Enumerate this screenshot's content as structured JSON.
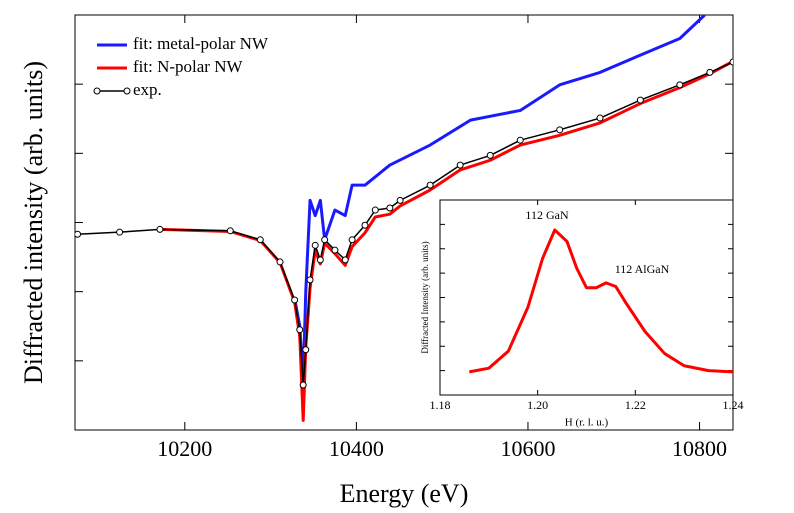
{
  "chart_data": [
    {
      "type": "line",
      "xlabel": "Energy (eV)",
      "ylabel": "Diffracted intensity (arb. units)",
      "xlim": [
        10072,
        10839
      ],
      "xticks": [
        10200,
        10400,
        10600,
        10800
      ],
      "ylim": [
        0,
        6
      ],
      "yticks": [
        1,
        2,
        3,
        4,
        5
      ],
      "legend": "upper left",
      "series": [
        {
          "name": "fit: metal-polar NW",
          "color": "#1a1aff",
          "x": [
            10328,
            10334,
            10338,
            10341,
            10346,
            10352,
            10358,
            10363,
            10375,
            10387,
            10395,
            10410,
            10439,
            10486,
            10533,
            10591,
            10637,
            10684,
            10731,
            10777,
            10806
          ],
          "values": [
            1.9,
            1.5,
            0.72,
            2.0,
            3.32,
            3.1,
            3.32,
            2.75,
            3.18,
            3.1,
            3.54,
            3.54,
            3.83,
            4.12,
            4.48,
            4.62,
            4.99,
            5.17,
            5.42,
            5.66,
            6.0
          ]
        },
        {
          "name": "fit: N-polar NW",
          "color": "#ff0000",
          "x": [
            10171,
            10253,
            10288,
            10311,
            10328,
            10334,
            10338,
            10341,
            10346,
            10352,
            10358,
            10363,
            10375,
            10387,
            10395,
            10410,
            10422,
            10439,
            10451,
            10486,
            10521,
            10556,
            10591,
            10637,
            10684,
            10731,
            10777,
            10812,
            10839
          ],
          "values": [
            2.9,
            2.87,
            2.74,
            2.42,
            1.85,
            1.35,
            0.14,
            1.2,
            2.05,
            2.6,
            2.4,
            2.7,
            2.55,
            2.38,
            2.65,
            2.85,
            3.08,
            3.12,
            3.24,
            3.47,
            3.76,
            3.9,
            4.12,
            4.26,
            4.44,
            4.72,
            4.95,
            5.15,
            5.33
          ]
        },
        {
          "name": "exp.",
          "color": "#000000",
          "marker": "o",
          "x": [
            10075,
            10124,
            10171,
            10253,
            10288,
            10311,
            10328,
            10334,
            10338,
            10341,
            10346,
            10352,
            10358,
            10363,
            10375,
            10387,
            10395,
            10410,
            10422,
            10439,
            10451,
            10486,
            10521,
            10556,
            10591,
            10637,
            10684,
            10731,
            10777,
            10812,
            10839
          ],
          "values": [
            2.83,
            2.86,
            2.9,
            2.88,
            2.75,
            2.43,
            1.88,
            1.45,
            0.65,
            1.16,
            2.17,
            2.67,
            2.46,
            2.75,
            2.6,
            2.46,
            2.75,
            2.96,
            3.18,
            3.21,
            3.32,
            3.54,
            3.83,
            3.97,
            4.19,
            4.34,
            4.51,
            4.77,
            4.99,
            5.17,
            5.32
          ]
        }
      ]
    },
    {
      "type": "line",
      "xlabel": "H (r. l. u.)",
      "ylabel": "Diffracted Intensity (arb. units)",
      "xlim": [
        1.18,
        1.24
      ],
      "xticks": [
        1.18,
        {
          "value": 1.2,
          "label": "1.20"
        },
        1.22,
        1.24
      ],
      "ylim": [
        0,
        8
      ],
      "yticks": [
        1,
        2,
        3,
        4,
        5,
        6,
        7
      ],
      "annotations": [
        "112 GaN",
        "112 AlGaN"
      ],
      "series": [
        {
          "color": "#ff0000",
          "x": [
            1.186,
            1.19,
            1.194,
            1.198,
            1.201,
            1.2035,
            1.206,
            1.208,
            1.21,
            1.212,
            1.214,
            1.216,
            1.218,
            1.222,
            1.226,
            1.23,
            1.235,
            1.24
          ],
          "values": [
            0.95,
            1.1,
            1.8,
            3.6,
            5.6,
            6.77,
            6.3,
            5.2,
            4.4,
            4.4,
            4.6,
            4.45,
            3.8,
            2.6,
            1.7,
            1.2,
            1.0,
            0.95
          ]
        }
      ]
    }
  ]
}
